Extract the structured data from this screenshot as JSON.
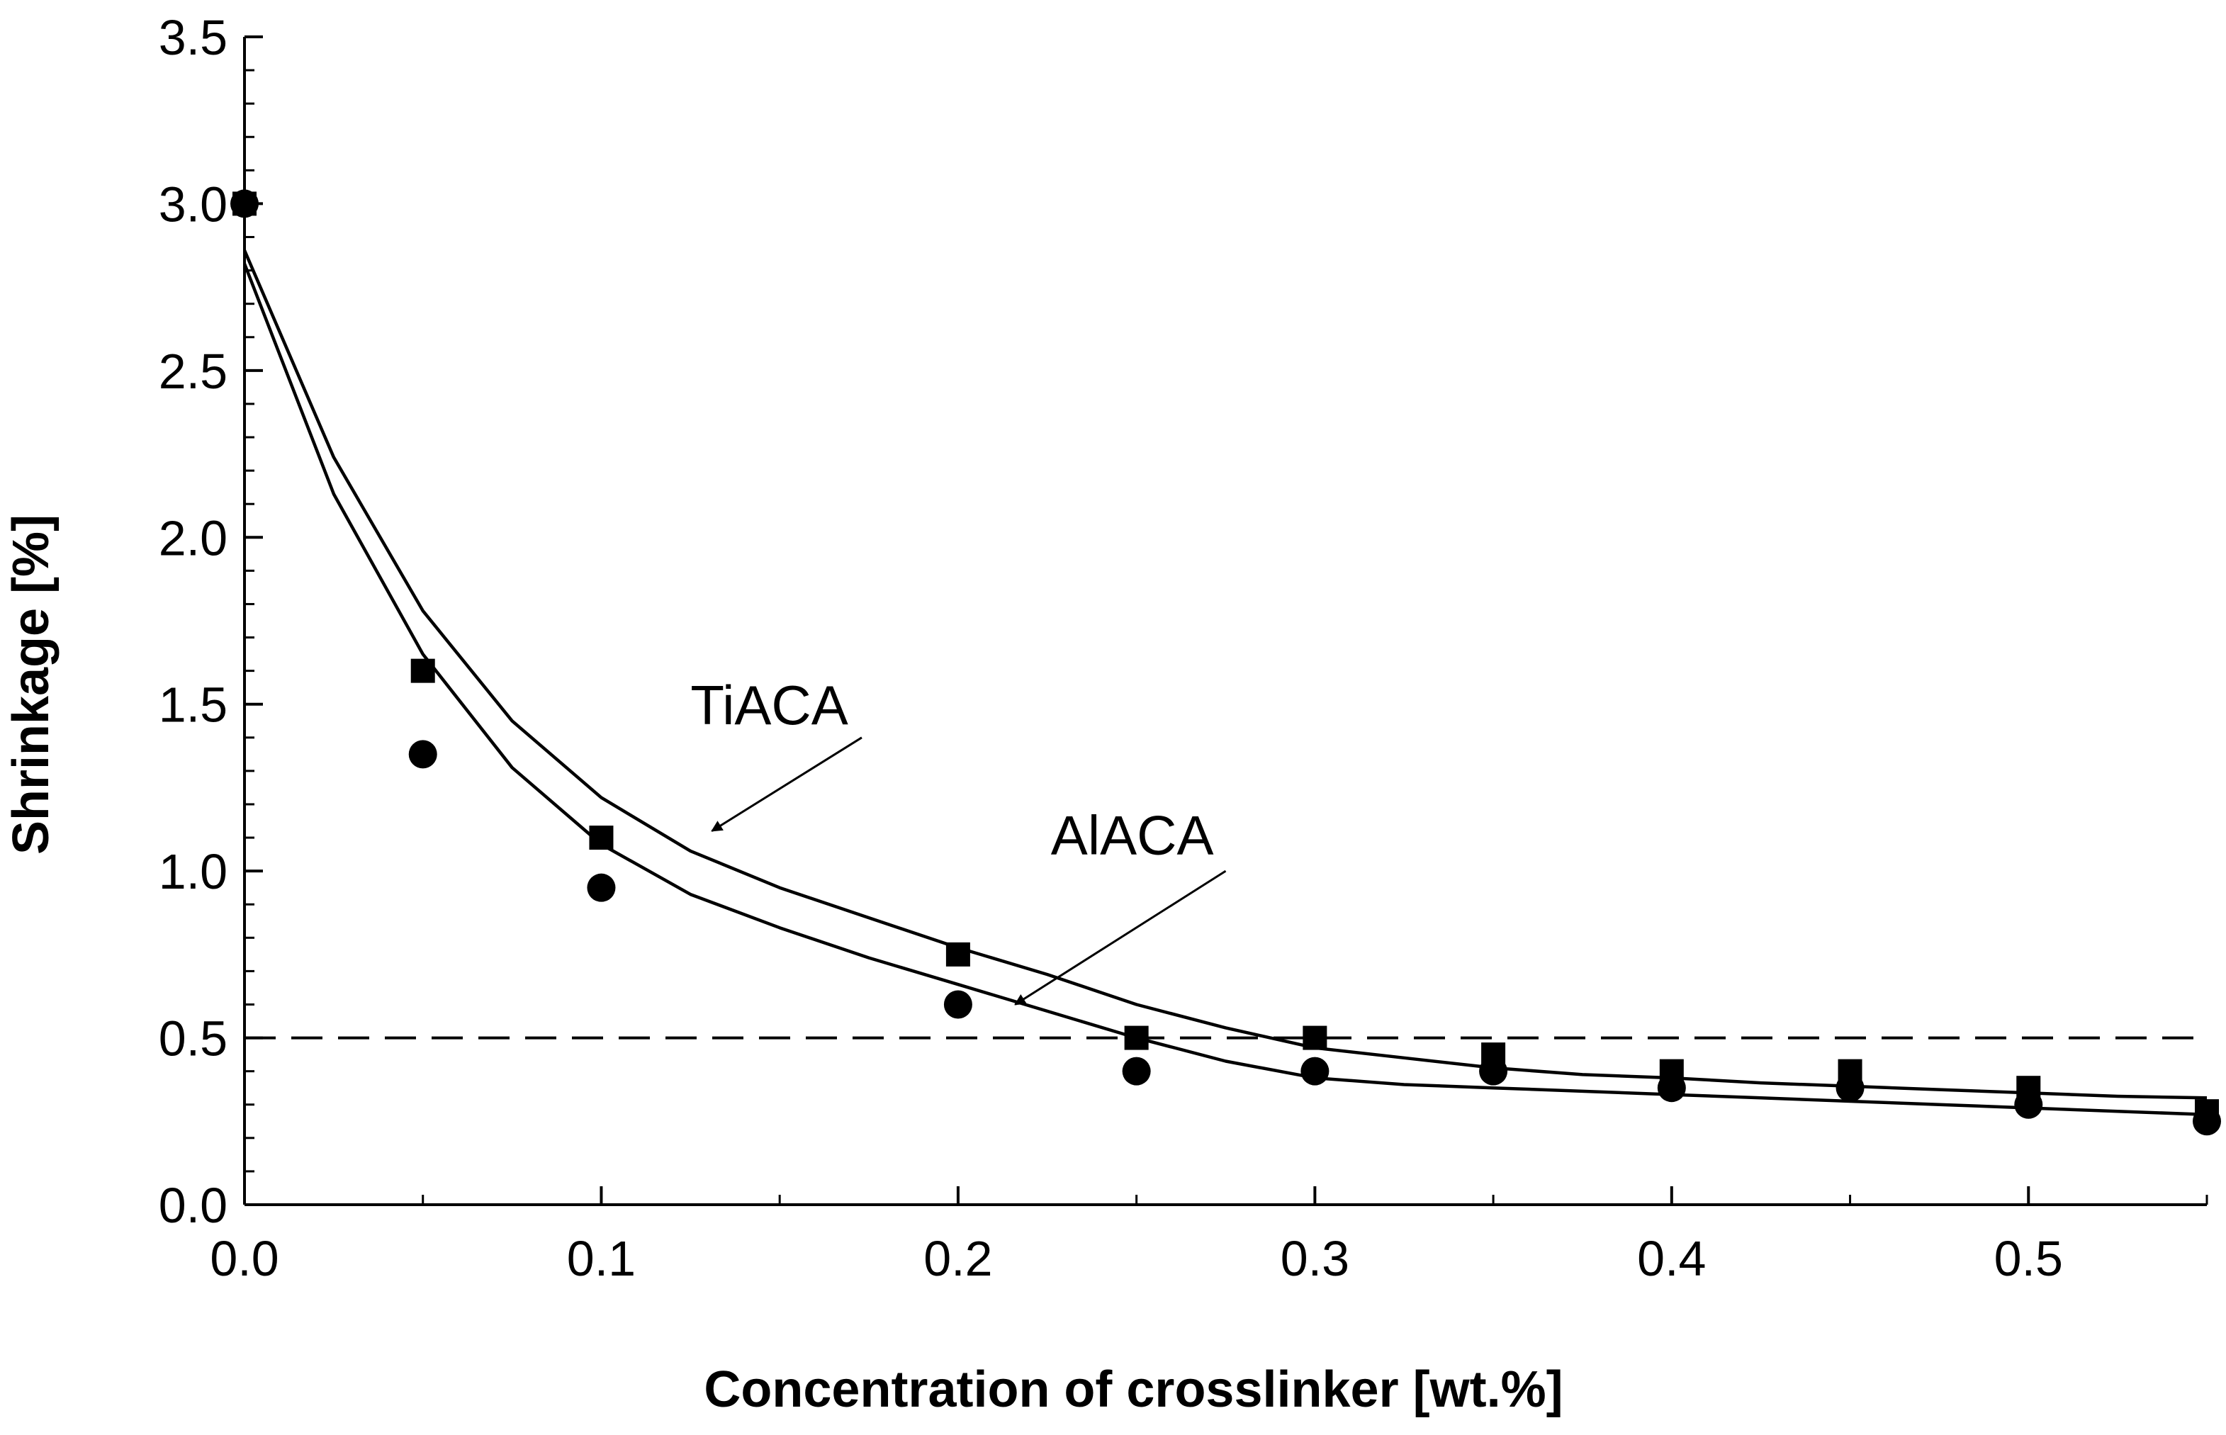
{
  "chart_data": {
    "type": "scatter",
    "title": "",
    "xlabel": "Concentration of crosslinker [wt.%]",
    "ylabel": "Shrinkage [%]",
    "xlim": [
      0,
      0.55
    ],
    "ylim": [
      0,
      3.5
    ],
    "x_major_ticks": [
      0.0,
      0.1,
      0.2,
      0.3,
      0.4,
      0.5
    ],
    "x_tick_labels": [
      "0.0",
      "0.1",
      "0.2",
      "0.3",
      "0.4",
      "0.5"
    ],
    "y_major_ticks": [
      0.0,
      0.5,
      1.0,
      1.5,
      2.0,
      2.5,
      3.0,
      3.5
    ],
    "y_tick_labels": [
      "0.0",
      "0.5",
      "1.0",
      "1.5",
      "2.0",
      "2.5",
      "3.0",
      "3.5"
    ],
    "x_minor_step": 0.05,
    "y_minor_step": 0.1,
    "grid": false,
    "legend": "none",
    "series": [
      {
        "name": "TiACA",
        "marker": "square",
        "color": "#000000",
        "points": [
          {
            "x": 0.0,
            "y": 3.0
          },
          {
            "x": 0.05,
            "y": 1.6
          },
          {
            "x": 0.1,
            "y": 1.1
          },
          {
            "x": 0.2,
            "y": 0.75
          },
          {
            "x": 0.25,
            "y": 0.5
          },
          {
            "x": 0.3,
            "y": 0.5
          },
          {
            "x": 0.35,
            "y": 0.45
          },
          {
            "x": 0.4,
            "y": 0.4
          },
          {
            "x": 0.45,
            "y": 0.4
          },
          {
            "x": 0.5,
            "y": 0.35
          },
          {
            "x": 0.55,
            "y": 0.28
          }
        ],
        "fit": [
          {
            "x": 0.0,
            "y": 2.86
          },
          {
            "x": 0.025,
            "y": 2.24
          },
          {
            "x": 0.05,
            "y": 1.78
          },
          {
            "x": 0.075,
            "y": 1.45
          },
          {
            "x": 0.1,
            "y": 1.22
          },
          {
            "x": 0.125,
            "y": 1.06
          },
          {
            "x": 0.15,
            "y": 0.95
          },
          {
            "x": 0.175,
            "y": 0.86
          },
          {
            "x": 0.2,
            "y": 0.77
          },
          {
            "x": 0.225,
            "y": 0.69
          },
          {
            "x": 0.25,
            "y": 0.6
          },
          {
            "x": 0.275,
            "y": 0.53
          },
          {
            "x": 0.3,
            "y": 0.47
          },
          {
            "x": 0.325,
            "y": 0.44
          },
          {
            "x": 0.35,
            "y": 0.41
          },
          {
            "x": 0.375,
            "y": 0.39
          },
          {
            "x": 0.4,
            "y": 0.38
          },
          {
            "x": 0.425,
            "y": 0.365
          },
          {
            "x": 0.45,
            "y": 0.355
          },
          {
            "x": 0.475,
            "y": 0.345
          },
          {
            "x": 0.5,
            "y": 0.335
          },
          {
            "x": 0.525,
            "y": 0.325
          },
          {
            "x": 0.55,
            "y": 0.32
          }
        ]
      },
      {
        "name": "AlACA",
        "marker": "circle",
        "color": "#000000",
        "points": [
          {
            "x": 0.0,
            "y": 3.0
          },
          {
            "x": 0.05,
            "y": 1.35
          },
          {
            "x": 0.1,
            "y": 0.95
          },
          {
            "x": 0.2,
            "y": 0.6
          },
          {
            "x": 0.25,
            "y": 0.4
          },
          {
            "x": 0.3,
            "y": 0.4
          },
          {
            "x": 0.35,
            "y": 0.4
          },
          {
            "x": 0.4,
            "y": 0.35
          },
          {
            "x": 0.45,
            "y": 0.35
          },
          {
            "x": 0.5,
            "y": 0.3
          },
          {
            "x": 0.55,
            "y": 0.25
          }
        ],
        "fit": [
          {
            "x": 0.0,
            "y": 2.82
          },
          {
            "x": 0.025,
            "y": 2.13
          },
          {
            "x": 0.05,
            "y": 1.65
          },
          {
            "x": 0.075,
            "y": 1.31
          },
          {
            "x": 0.1,
            "y": 1.08
          },
          {
            "x": 0.125,
            "y": 0.93
          },
          {
            "x": 0.15,
            "y": 0.83
          },
          {
            "x": 0.175,
            "y": 0.74
          },
          {
            "x": 0.2,
            "y": 0.66
          },
          {
            "x": 0.225,
            "y": 0.58
          },
          {
            "x": 0.25,
            "y": 0.5
          },
          {
            "x": 0.275,
            "y": 0.43
          },
          {
            "x": 0.3,
            "y": 0.38
          },
          {
            "x": 0.325,
            "y": 0.36
          },
          {
            "x": 0.35,
            "y": 0.35
          },
          {
            "x": 0.375,
            "y": 0.34
          },
          {
            "x": 0.4,
            "y": 0.33
          },
          {
            "x": 0.425,
            "y": 0.32
          },
          {
            "x": 0.45,
            "y": 0.31
          },
          {
            "x": 0.475,
            "y": 0.3
          },
          {
            "x": 0.5,
            "y": 0.29
          },
          {
            "x": 0.525,
            "y": 0.28
          },
          {
            "x": 0.55,
            "y": 0.27
          }
        ]
      }
    ],
    "reference_lines": [
      {
        "axis": "y",
        "value": 0.5,
        "style": "dashed"
      }
    ],
    "annotations": [
      {
        "text": "TiACA",
        "target_series": "TiACA",
        "text_at": {
          "x": 0.125,
          "y": 1.44
        },
        "arrow_from": {
          "x": 0.173,
          "y": 1.4
        },
        "arrow_to": {
          "x": 0.131,
          "y": 1.12
        }
      },
      {
        "text": "AlACA",
        "target_series": "AlACA",
        "text_at": {
          "x": 0.226,
          "y": 1.05
        },
        "arrow_from": {
          "x": 0.275,
          "y": 1.0
        },
        "arrow_to": {
          "x": 0.216,
          "y": 0.6
        }
      }
    ]
  }
}
